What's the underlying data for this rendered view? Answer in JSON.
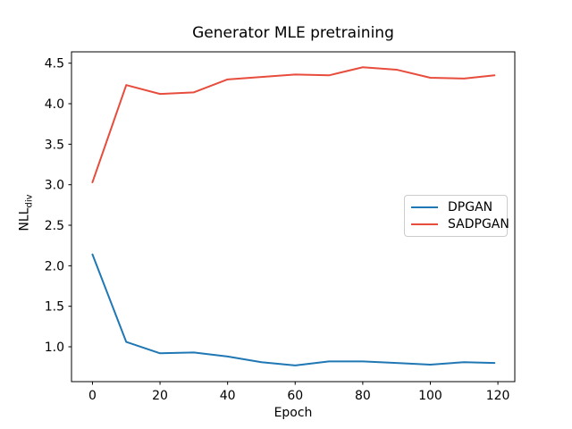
{
  "figure": {
    "title": "Generator MLE pretraining",
    "xlabel": "Epoch",
    "ylabel_base": "NLL",
    "ylabel_sub": "div"
  },
  "chart_data": {
    "type": "line",
    "title": "Generator MLE pretraining",
    "xlabel": "Epoch",
    "ylabel": "NLL_div",
    "x": [
      0,
      10,
      20,
      30,
      40,
      50,
      60,
      70,
      80,
      90,
      100,
      110,
      119
    ],
    "series": [
      {
        "name": "DPGAN",
        "color": "#1f77b4",
        "values": [
          2.14,
          1.06,
          0.92,
          0.93,
          0.88,
          0.81,
          0.77,
          0.82,
          0.82,
          0.8,
          0.78,
          0.81,
          0.8
        ]
      },
      {
        "name": "SADPGAN",
        "color": "#e74c3c",
        "values": [
          3.03,
          4.23,
          4.12,
          4.14,
          4.3,
          4.33,
          4.36,
          4.35,
          4.45,
          4.42,
          4.32,
          4.31,
          4.35
        ]
      }
    ],
    "xlim": [
      -6.2,
      125.0
    ],
    "ylim": [
      0.57,
      4.64
    ],
    "xticks": [
      0,
      20,
      40,
      60,
      80,
      100,
      120
    ],
    "yticks": [
      1.0,
      1.5,
      2.0,
      2.5,
      3.0,
      3.5,
      4.0,
      4.5
    ],
    "grid": false,
    "legend_position": "center right",
    "axis_color": "#000000",
    "tick_font_px": 14
  }
}
